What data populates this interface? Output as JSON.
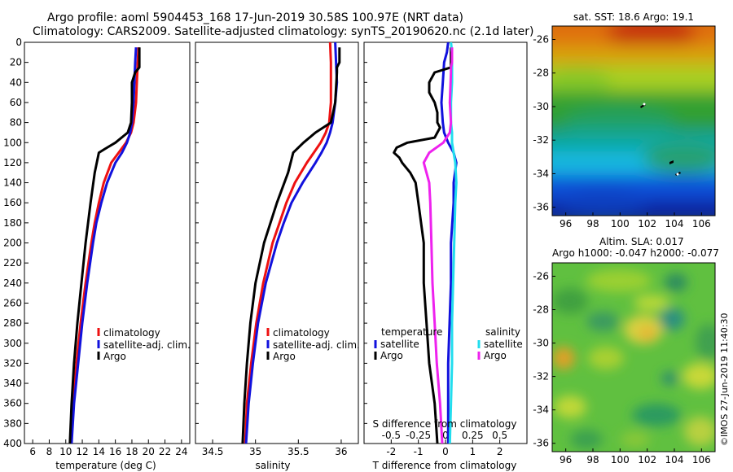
{
  "title": {
    "line1": "Argo profile: aoml 5904453_168 17-Jun-2019 30.58S 100.97E (NRT data)",
    "line2": "Climatology: CARS2009. Satellite-adjusted climatology: synTS_20190620.nc (2.1d later)"
  },
  "colors": {
    "climatology": "#ee1111",
    "satellite": "#1111dd",
    "argo": "#000000",
    "s_satellite": "#22ddee",
    "s_argo": "#ee22ee"
  },
  "chart_data": [
    {
      "id": "temperature",
      "type": "line",
      "xlabel": "temperature (deg C)",
      "ylabel": "",
      "xlim": [
        5,
        25
      ],
      "ylim": [
        400,
        0
      ],
      "xticks": [
        6,
        8,
        10,
        12,
        14,
        16,
        18,
        20,
        22,
        24
      ],
      "yticks": [
        0,
        20,
        40,
        60,
        80,
        100,
        120,
        140,
        160,
        180,
        200,
        220,
        240,
        260,
        280,
        300,
        320,
        340,
        360,
        380,
        400
      ],
      "legend": [
        "climatology",
        "satellite-adj. clim.",
        "Argo"
      ],
      "series": [
        {
          "name": "climatology",
          "color": "#ee1111",
          "depth": [
            5,
            20,
            40,
            60,
            80,
            90,
            100,
            110,
            120,
            140,
            160,
            180,
            200,
            240,
            280,
            320,
            360,
            400
          ],
          "values": [
            18.8,
            18.7,
            18.6,
            18.5,
            18.2,
            17.9,
            17.3,
            16.4,
            15.5,
            14.6,
            14.0,
            13.5,
            13.1,
            12.4,
            11.8,
            11.3,
            10.9,
            10.6
          ]
        },
        {
          "name": "satellite-adj. clim.",
          "color": "#1111dd",
          "depth": [
            5,
            20,
            40,
            60,
            80,
            90,
            100,
            110,
            120,
            140,
            160,
            180,
            200,
            240,
            280,
            320,
            360,
            400
          ],
          "values": [
            18.5,
            18.4,
            18.3,
            18.2,
            18.0,
            17.8,
            17.4,
            16.8,
            16.0,
            15.0,
            14.3,
            13.7,
            13.3,
            12.6,
            12.0,
            11.5,
            11.0,
            10.7
          ]
        },
        {
          "name": "Argo",
          "color": "#000000",
          "depth": [
            5,
            25,
            30,
            40,
            60,
            80,
            90,
            100,
            105,
            110,
            130,
            160,
            200,
            240,
            280,
            320,
            360,
            400
          ],
          "values": [
            18.9,
            18.9,
            18.4,
            18.0,
            18.0,
            17.9,
            17.5,
            16.0,
            15.0,
            14.0,
            13.5,
            13.0,
            12.4,
            11.9,
            11.4,
            11.0,
            10.7,
            10.5
          ]
        }
      ]
    },
    {
      "id": "salinity",
      "type": "line",
      "xlabel": "salinity",
      "ylabel": "",
      "xlim": [
        34.3,
        36.2
      ],
      "ylim": [
        400,
        0
      ],
      "xticks": [
        34.5,
        35,
        35.5,
        36
      ],
      "xticklabels": [
        "34.5",
        "35",
        "35.5",
        "36"
      ],
      "legend": [
        "climatology",
        "satellite-adj. clim.",
        "Argo"
      ],
      "series": [
        {
          "name": "climatology",
          "color": "#ee1111",
          "depth": [
            0,
            20,
            40,
            60,
            80,
            90,
            100,
            110,
            120,
            140,
            160,
            180,
            200,
            240,
            280,
            320,
            360,
            400
          ],
          "values": [
            35.87,
            35.88,
            35.88,
            35.88,
            35.86,
            35.82,
            35.76,
            35.68,
            35.6,
            35.46,
            35.36,
            35.28,
            35.2,
            35.09,
            35.01,
            34.95,
            34.9,
            34.88
          ]
        },
        {
          "name": "satellite-adj. clim.",
          "color": "#1111dd",
          "depth": [
            0,
            20,
            40,
            60,
            80,
            90,
            100,
            110,
            120,
            140,
            160,
            180,
            200,
            240,
            280,
            320,
            360,
            400
          ],
          "values": [
            35.93,
            35.94,
            35.95,
            35.93,
            35.9,
            35.87,
            35.83,
            35.77,
            35.7,
            35.55,
            35.42,
            35.33,
            35.25,
            35.12,
            35.03,
            34.97,
            34.92,
            34.89
          ]
        },
        {
          "name": "Argo",
          "color": "#000000",
          "depth": [
            5,
            20,
            25,
            30,
            60,
            80,
            90,
            100,
            110,
            130,
            160,
            200,
            240,
            280,
            320,
            360,
            400
          ],
          "values": [
            35.98,
            35.98,
            35.95,
            35.95,
            35.93,
            35.88,
            35.7,
            35.56,
            35.44,
            35.38,
            35.25,
            35.1,
            35.0,
            34.94,
            34.9,
            34.87,
            34.85
          ]
        }
      ]
    },
    {
      "id": "difference",
      "type": "line",
      "xlabel": "T difference from climatology",
      "xlabel_top": "S difference from climatology",
      "xlim": [
        -3,
        3
      ],
      "ylim": [
        400,
        0
      ],
      "xticks": [
        -2,
        -1,
        0,
        1,
        2
      ],
      "xticklabels": [
        "-2",
        "-1",
        "0",
        "1",
        "2"
      ],
      "top_ticks": [
        -0.5,
        -0.25,
        0,
        0.25,
        0.5
      ],
      "top_ticklabels": [
        "-0.5",
        "-0.25",
        "0",
        "0.25",
        "0.5"
      ],
      "top_scale": 4,
      "legend_temperature": {
        "title": "temperature",
        "items": [
          "satellite",
          "Argo"
        ]
      },
      "legend_salinity": {
        "title": "salinity",
        "items": [
          "satellite",
          "Argo"
        ]
      },
      "series": [
        {
          "name": "temperature satellite",
          "color": "#1111dd",
          "depth": [
            0,
            10,
            20,
            40,
            60,
            80,
            90,
            100,
            110,
            120,
            140,
            160,
            200,
            240,
            280,
            320,
            360,
            400
          ],
          "values": [
            0.1,
            0.05,
            -0.05,
            -0.1,
            -0.15,
            -0.1,
            -0.05,
            0.1,
            0.3,
            0.4,
            0.3,
            0.3,
            0.2,
            0.2,
            0.15,
            0.1,
            0.1,
            0.1
          ]
        },
        {
          "name": "temperature Argo",
          "color": "#000000",
          "depth": [
            5,
            25,
            30,
            40,
            50,
            60,
            70,
            80,
            85,
            90,
            95,
            100,
            105,
            110,
            115,
            120,
            130,
            140,
            160,
            180,
            200,
            240,
            280,
            320,
            360,
            400
          ],
          "values": [
            0.2,
            0.2,
            -0.4,
            -0.6,
            -0.6,
            -0.4,
            -0.3,
            -0.3,
            -0.2,
            -0.3,
            -0.4,
            -1.4,
            -1.8,
            -1.9,
            -1.7,
            -1.6,
            -1.3,
            -1.1,
            -1.0,
            -0.9,
            -0.8,
            -0.8,
            -0.7,
            -0.6,
            -0.4,
            -0.3
          ]
        },
        {
          "name": "salinity satellite",
          "color": "#22ddee",
          "depth": [
            0,
            10,
            20,
            40,
            60,
            80,
            90,
            100,
            120,
            140,
            160,
            200,
            240,
            280,
            320,
            360,
            400
          ],
          "values": [
            0.05,
            0.06,
            0.06,
            0.06,
            0.05,
            0.05,
            0.06,
            0.06,
            0.09,
            0.1,
            0.09,
            0.08,
            0.07,
            0.06,
            0.06,
            0.05,
            0.04
          ]
        },
        {
          "name": "salinity Argo",
          "color": "#ee22ee",
          "depth": [
            5,
            20,
            25,
            30,
            60,
            80,
            90,
            100,
            110,
            120,
            140,
            160,
            200,
            240,
            280,
            320,
            360,
            400
          ],
          "values": [
            0.06,
            0.06,
            0.05,
            0.05,
            0.04,
            0.05,
            0.04,
            -0.02,
            -0.15,
            -0.2,
            -0.15,
            -0.14,
            -0.13,
            -0.12,
            -0.1,
            -0.08,
            -0.05,
            -0.03
          ]
        }
      ]
    },
    {
      "id": "sst-map",
      "type": "heatmap",
      "title": "sat. SST: 18.6 Argo: 19.1",
      "xticks": [
        96,
        98,
        100,
        102,
        104,
        106
      ],
      "yticks": [
        -26,
        -28,
        -30,
        -32,
        -34,
        -36
      ],
      "xlim": [
        95,
        107
      ],
      "ylim": [
        -36.5,
        -25.2
      ]
    },
    {
      "id": "sla-map",
      "type": "heatmap",
      "title_line1": "Altim. SLA: 0.017",
      "title_line2": "Argo h1000: -0.047 h2000: -0.077",
      "xticks": [
        96,
        98,
        100,
        102,
        104,
        106
      ],
      "yticks": [
        -26,
        -28,
        -30,
        -32,
        -34,
        -36
      ],
      "xlim": [
        95,
        107
      ],
      "ylim": [
        -36.5,
        -25.2
      ]
    }
  ],
  "imos_stamp": "©IMOS 27-Jun-2019 11:40:30"
}
